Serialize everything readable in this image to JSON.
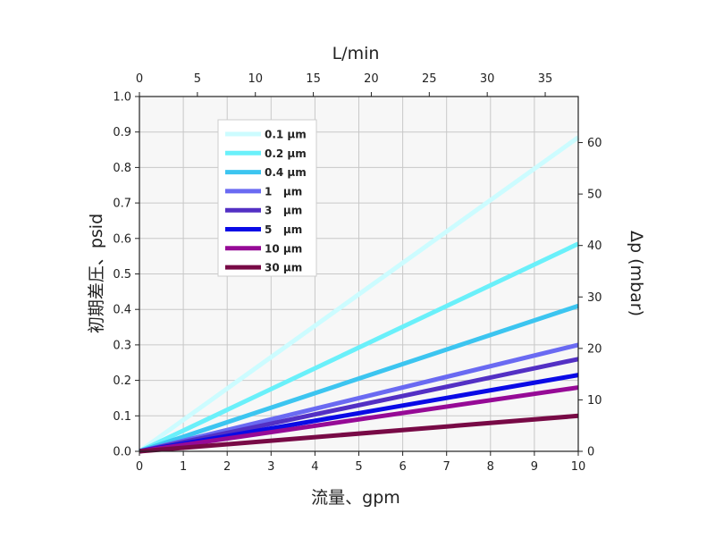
{
  "chart_data": {
    "type": "line",
    "title": "",
    "xlabel": "流量、gpm",
    "ylabel": "初期差圧、psid",
    "x2label": "L/min",
    "y2label": "Δp (mbar)",
    "xlim": [
      0,
      10
    ],
    "ylim": [
      0,
      1.0
    ],
    "x2lim": [
      0,
      37.85
    ],
    "y2lim": [
      0,
      68.95
    ],
    "x_ticks": [
      "0",
      "1",
      "2",
      "3",
      "4",
      "5",
      "6",
      "7",
      "8",
      "9",
      "10"
    ],
    "y_ticks": [
      "0.0",
      "0.1",
      "0.2",
      "0.3",
      "0.4",
      "0.5",
      "0.6",
      "0.7",
      "0.8",
      "0.9",
      "1.0"
    ],
    "x2_ticks": [
      {
        "value": 0,
        "label": "0"
      },
      {
        "value": 5,
        "label": "5"
      },
      {
        "value": 10,
        "label": "10"
      },
      {
        "value": 15,
        "label": "15"
      },
      {
        "value": 20,
        "label": "20"
      },
      {
        "value": 25,
        "label": "25"
      },
      {
        "value": 30,
        "label": "30"
      },
      {
        "value": 35,
        "label": "35"
      }
    ],
    "y2_ticks": [
      {
        "value": 0,
        "label": "0"
      },
      {
        "value": 10,
        "label": "10"
      },
      {
        "value": 20,
        "label": "20"
      },
      {
        "value": 30,
        "label": "30"
      },
      {
        "value": 40,
        "label": "40"
      },
      {
        "value": 50,
        "label": "50"
      },
      {
        "value": 60,
        "label": "60"
      }
    ],
    "grid": true,
    "legend_position": "top-left",
    "series": [
      {
        "name": "0.1 µm",
        "color": "#ccfcff",
        "x": [
          0,
          10
        ],
        "y": [
          0,
          0.885
        ]
      },
      {
        "name": "0.2 µm",
        "color": "#6af0fa",
        "x": [
          0,
          10
        ],
        "y": [
          0,
          0.585
        ]
      },
      {
        "name": "0.4 µm",
        "color": "#3cc5f0",
        "x": [
          0,
          10
        ],
        "y": [
          0,
          0.41
        ]
      },
      {
        "name": "1   µm",
        "color": "#6a6af2",
        "x": [
          0,
          10
        ],
        "y": [
          0,
          0.3
        ]
      },
      {
        "name": "3   µm",
        "color": "#5330c4",
        "x": [
          0,
          10
        ],
        "y": [
          0,
          0.26
        ]
      },
      {
        "name": "5   µm",
        "color": "#0a0ae6",
        "x": [
          0,
          10
        ],
        "y": [
          0,
          0.215
        ]
      },
      {
        "name": "10 µm",
        "color": "#960a96",
        "x": [
          0,
          10
        ],
        "y": [
          0,
          0.18
        ]
      },
      {
        "name": "30 µm",
        "color": "#780a46",
        "x": [
          0,
          10
        ],
        "y": [
          0,
          0.1
        ]
      }
    ]
  }
}
